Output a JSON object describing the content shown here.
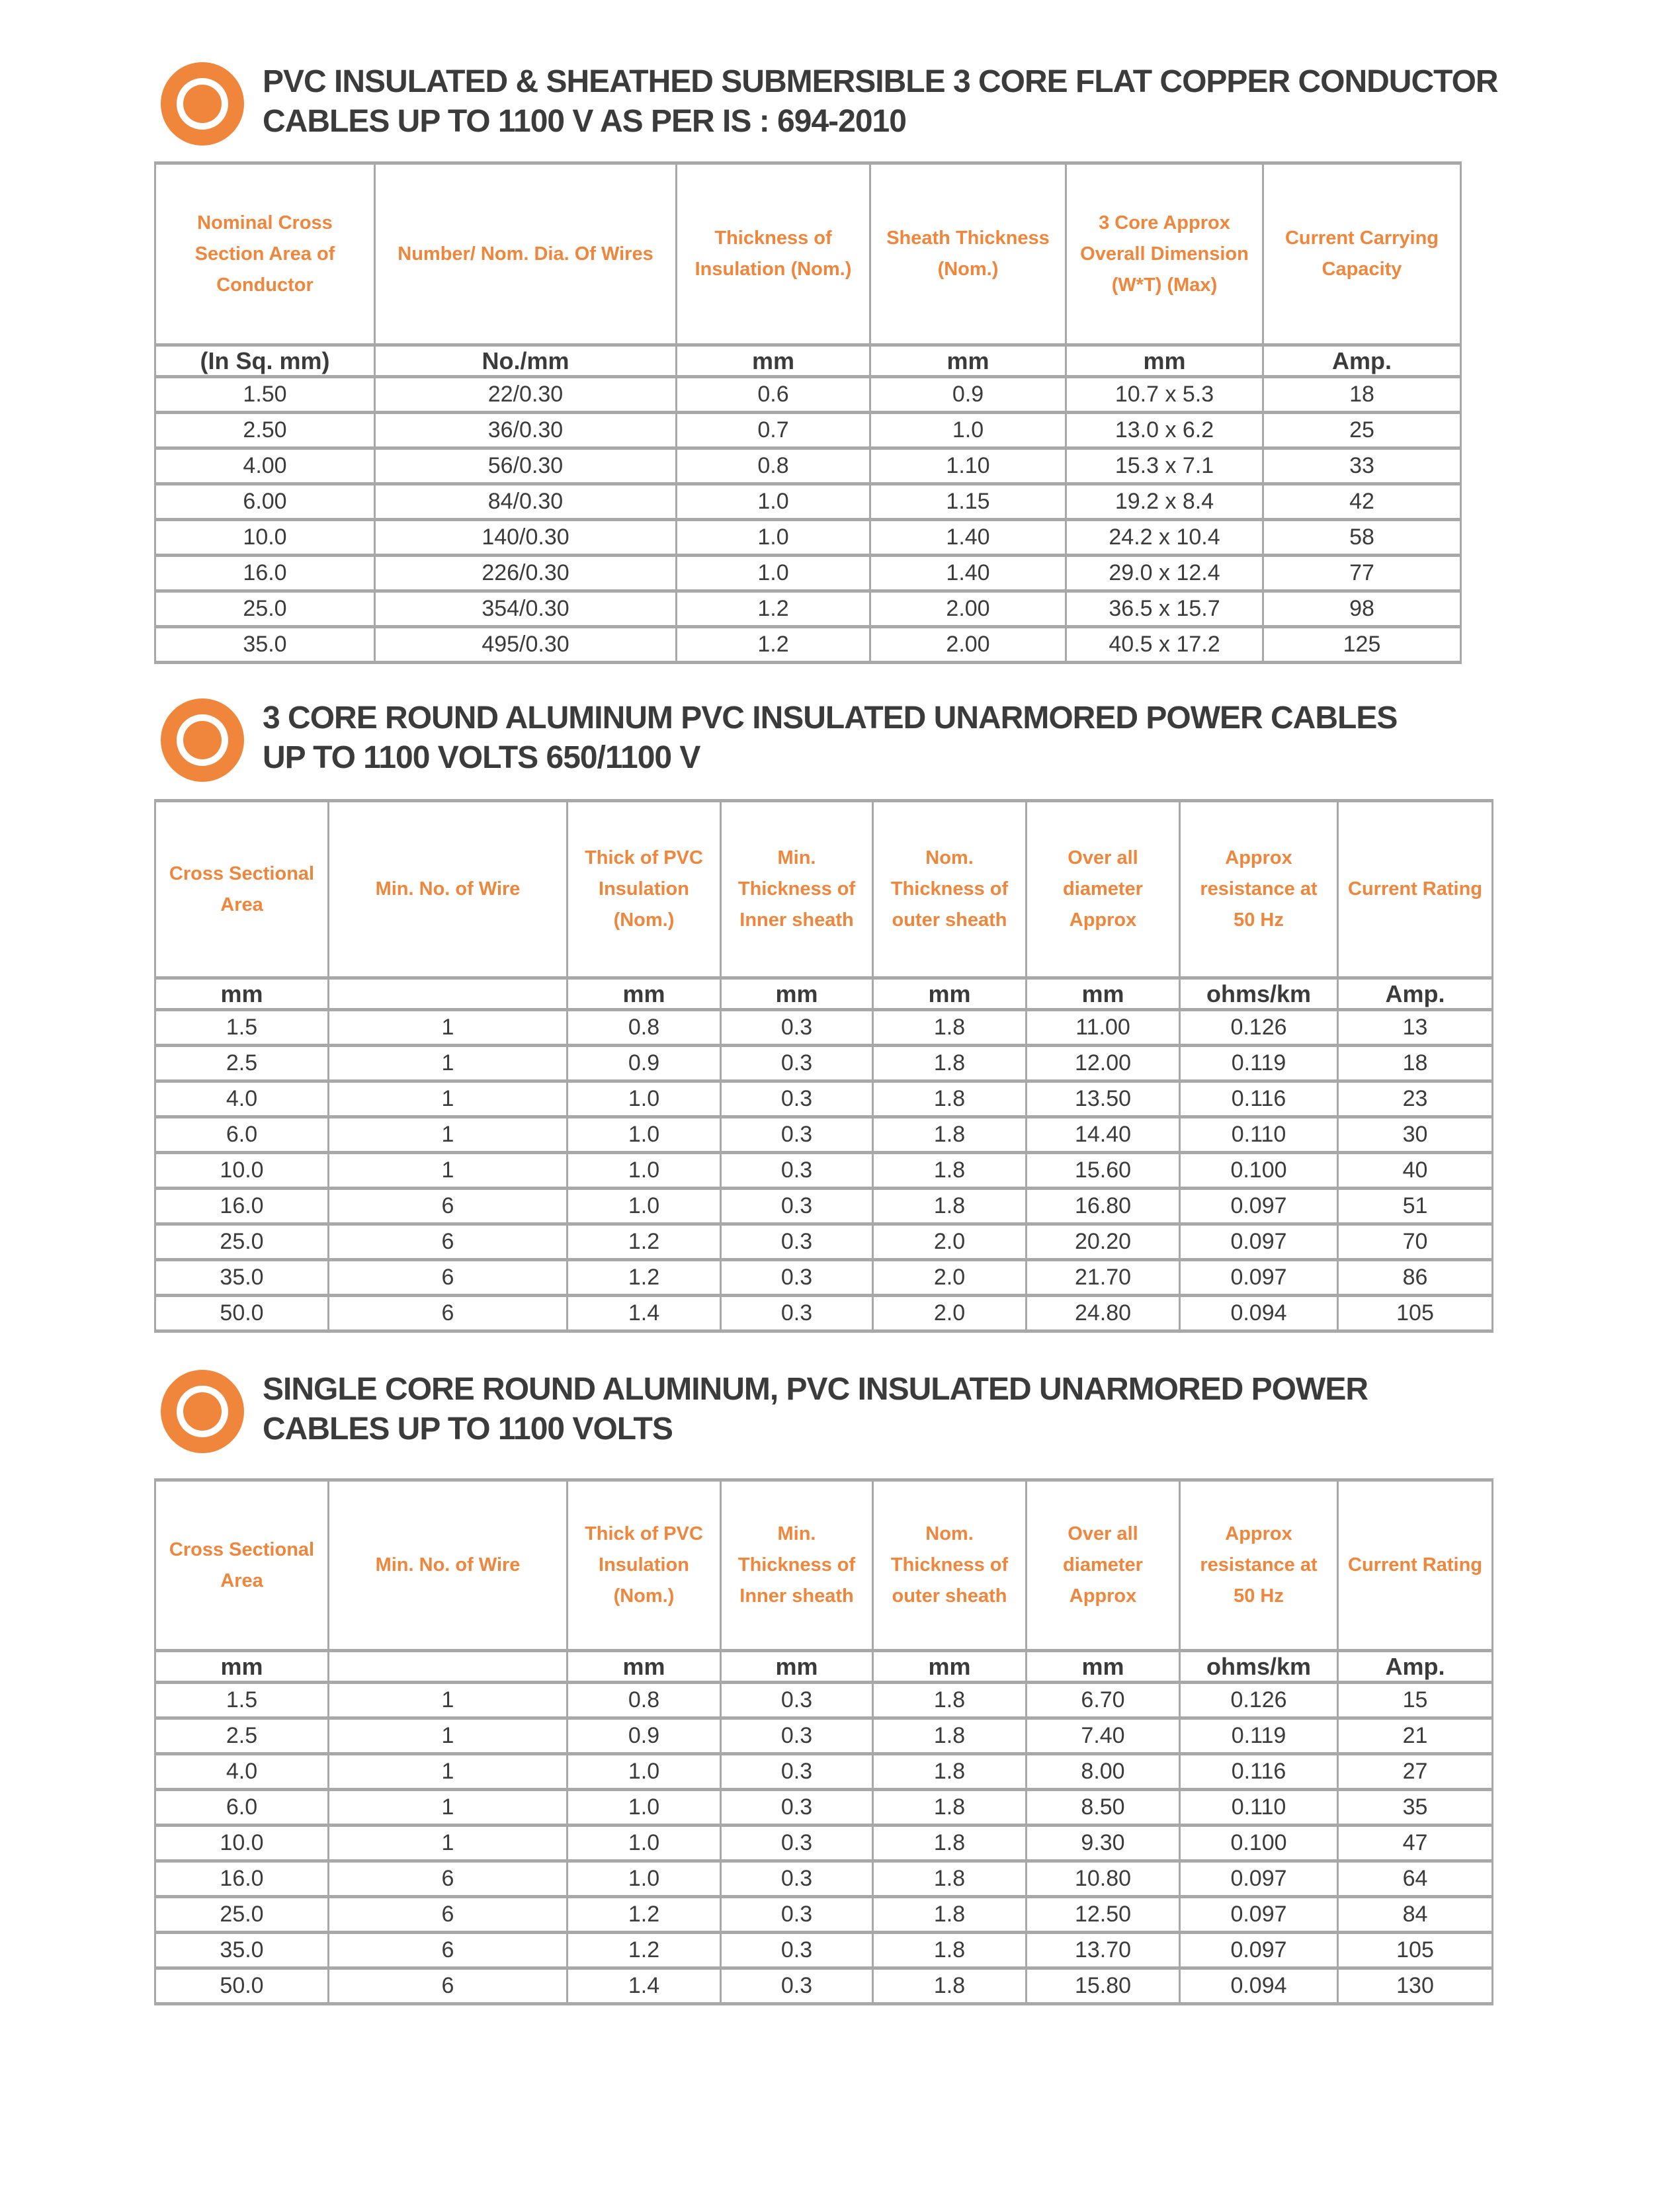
{
  "colors": {
    "accent_orange": "#F0863C",
    "border_gray": "#A8A8A8",
    "text_dark": "#3B3B3B"
  },
  "sections": [
    {
      "title_lines": [
        "PVC INSULATED & SHEATHED SUBMERSIBLE 3 CORE FLAT COPPER CONDUCTOR",
        "CABLES UP TO 1100 V AS PER IS : 694-2010"
      ],
      "table": {
        "headers": [
          "Nominal Cross Section Area of Conductor",
          "Number/ Nom. Dia. Of Wires",
          "Thickness of Insulation (Nom.)",
          "Sheath Thickness (Nom.)",
          "3 Core Approx Overall Dimension (W*T) (Max)",
          "Current Carrying Capacity"
        ],
        "units": [
          "(In Sq. mm)",
          "No./mm",
          "mm",
          "mm",
          "mm",
          "Amp."
        ],
        "rows": [
          [
            "1.50",
            "22/0.30",
            "0.6",
            "0.9",
            "10.7 x 5.3",
            "18"
          ],
          [
            "2.50",
            "36/0.30",
            "0.7",
            "1.0",
            "13.0 x 6.2",
            "25"
          ],
          [
            "4.00",
            "56/0.30",
            "0.8",
            "1.10",
            "15.3 x 7.1",
            "33"
          ],
          [
            "6.00",
            "84/0.30",
            "1.0",
            "1.15",
            "19.2 x 8.4",
            "42"
          ],
          [
            "10.0",
            "140/0.30",
            "1.0",
            "1.40",
            "24.2 x 10.4",
            "58"
          ],
          [
            "16.0",
            "226/0.30",
            "1.0",
            "1.40",
            "29.0 x 12.4",
            "77"
          ],
          [
            "25.0",
            "354/0.30",
            "1.2",
            "2.00",
            "36.5 x 15.7",
            "98"
          ],
          [
            "35.0",
            "495/0.30",
            "1.2",
            "2.00",
            "40.5 x 17.2",
            "125"
          ]
        ]
      }
    },
    {
      "title_lines": [
        "3 CORE ROUND ALUMINUM PVC INSULATED UNARMORED POWER CABLES",
        "UP TO 1100 VOLTS 650/1100 V"
      ],
      "table": {
        "headers": [
          "Cross Sectional Area",
          "Min. No. of Wire",
          "Thick of PVC Insulation (Nom.)",
          "Min. Thickness of Inner sheath",
          "Nom. Thickness of outer sheath",
          "Over all diameter Approx",
          "Approx resistance at 50 Hz",
          "Current Rating"
        ],
        "units": [
          "mm",
          "",
          "mm",
          "mm",
          "mm",
          "mm",
          "ohms/km",
          "Amp."
        ],
        "rows": [
          [
            "1.5",
            "1",
            "0.8",
            "0.3",
            "1.8",
            "11.00",
            "0.126",
            "13"
          ],
          [
            "2.5",
            "1",
            "0.9",
            "0.3",
            "1.8",
            "12.00",
            "0.119",
            "18"
          ],
          [
            "4.0",
            "1",
            "1.0",
            "0.3",
            "1.8",
            "13.50",
            "0.116",
            "23"
          ],
          [
            "6.0",
            "1",
            "1.0",
            "0.3",
            "1.8",
            "14.40",
            "0.110",
            "30"
          ],
          [
            "10.0",
            "1",
            "1.0",
            "0.3",
            "1.8",
            "15.60",
            "0.100",
            "40"
          ],
          [
            "16.0",
            "6",
            "1.0",
            "0.3",
            "1.8",
            "16.80",
            "0.097",
            "51"
          ],
          [
            "25.0",
            "6",
            "1.2",
            "0.3",
            "2.0",
            "20.20",
            "0.097",
            "70"
          ],
          [
            "35.0",
            "6",
            "1.2",
            "0.3",
            "2.0",
            "21.70",
            "0.097",
            "86"
          ],
          [
            "50.0",
            "6",
            "1.4",
            "0.3",
            "2.0",
            "24.80",
            "0.094",
            "105"
          ]
        ]
      }
    },
    {
      "title_lines": [
        "SINGLE CORE ROUND ALUMINUM, PVC INSULATED UNARMORED POWER",
        "CABLES UP TO 1100 VOLTS"
      ],
      "table": {
        "headers": [
          "Cross Sectional Area",
          "Min. No. of Wire",
          "Thick of PVC Insulation (Nom.)",
          "Min. Thickness of Inner sheath",
          "Nom. Thickness of outer sheath",
          "Over all diameter Approx",
          "Approx resistance at 50 Hz",
          "Current Rating"
        ],
        "units": [
          "mm",
          "",
          "mm",
          "mm",
          "mm",
          "mm",
          "ohms/km",
          "Amp."
        ],
        "rows": [
          [
            "1.5",
            "1",
            "0.8",
            "0.3",
            "1.8",
            "6.70",
            "0.126",
            "15"
          ],
          [
            "2.5",
            "1",
            "0.9",
            "0.3",
            "1.8",
            "7.40",
            "0.119",
            "21"
          ],
          [
            "4.0",
            "1",
            "1.0",
            "0.3",
            "1.8",
            "8.00",
            "0.116",
            "27"
          ],
          [
            "6.0",
            "1",
            "1.0",
            "0.3",
            "1.8",
            "8.50",
            "0.110",
            "35"
          ],
          [
            "10.0",
            "1",
            "1.0",
            "0.3",
            "1.8",
            "9.30",
            "0.100",
            "47"
          ],
          [
            "16.0",
            "6",
            "1.0",
            "0.3",
            "1.8",
            "10.80",
            "0.097",
            "64"
          ],
          [
            "25.0",
            "6",
            "1.2",
            "0.3",
            "1.8",
            "12.50",
            "0.097",
            "84"
          ],
          [
            "35.0",
            "6",
            "1.2",
            "0.3",
            "1.8",
            "13.70",
            "0.097",
            "105"
          ],
          [
            "50.0",
            "6",
            "1.4",
            "0.3",
            "1.8",
            "15.80",
            "0.094",
            "130"
          ]
        ]
      }
    }
  ]
}
